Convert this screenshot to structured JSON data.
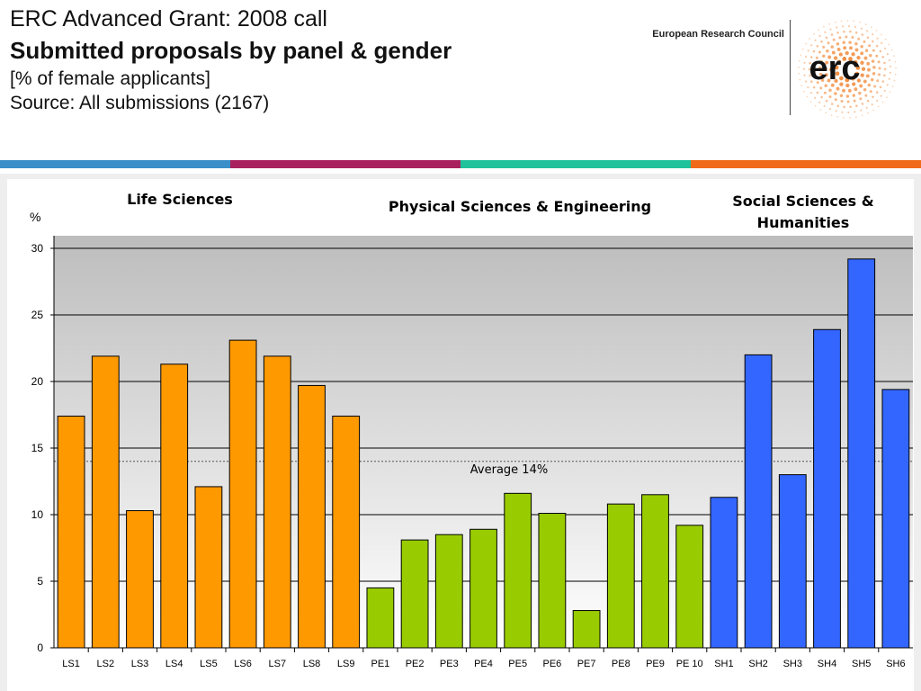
{
  "header": {
    "title_line1": "ERC Advanced Grant: 2008 call",
    "title_line2": "Submitted proposals by panel & gender",
    "title_line3": "[% of female applicants]",
    "title_line4": "Source: All submissions (2167)",
    "org_name": "European Research Council",
    "logo_text": "erc"
  },
  "colors": {
    "stripe": [
      "#3a8fc9",
      "#a8215e",
      "#1fc29a",
      "#f06a1a"
    ],
    "life_sciences": "#ff9900",
    "physical_sciences": "#99cc00",
    "social_sciences": "#3366ff",
    "logo_accent": "#f07e26"
  },
  "chart_data": {
    "type": "bar",
    "ylabel": "%",
    "ylim": [
      0,
      30
    ],
    "yticks": [
      0,
      5,
      10,
      15,
      20,
      25,
      30
    ],
    "grid": true,
    "groups": [
      {
        "name": "Life Sciences",
        "color_key": "life_sciences"
      },
      {
        "name": "Physical Sciences & Engineering",
        "color_key": "physical_sciences"
      },
      {
        "name": "Social Sciences & Humanities",
        "color_key": "social_sciences"
      }
    ],
    "categories": [
      "LS1",
      "LS2",
      "LS3",
      "LS4",
      "LS5",
      "LS6",
      "LS7",
      "LS8",
      "LS9",
      "PE1",
      "PE2",
      "PE3",
      "PE4",
      "PE5",
      "PE6",
      "PE7",
      "PE8",
      "PE9",
      "PE 10",
      "SH1",
      "SH2",
      "SH3",
      "SH4",
      "SH5",
      "SH6"
    ],
    "category_group": [
      0,
      0,
      0,
      0,
      0,
      0,
      0,
      0,
      0,
      1,
      1,
      1,
      1,
      1,
      1,
      1,
      1,
      1,
      1,
      2,
      2,
      2,
      2,
      2,
      2
    ],
    "values": [
      17.4,
      21.9,
      10.3,
      21.3,
      12.1,
      23.1,
      21.9,
      19.7,
      17.4,
      4.5,
      8.1,
      8.5,
      8.9,
      11.6,
      10.1,
      2.8,
      10.8,
      11.5,
      9.2,
      11.3,
      22.0,
      13.0,
      23.9,
      29.2,
      19.4
    ],
    "average": {
      "value": 14,
      "label": "Average 14%"
    }
  }
}
